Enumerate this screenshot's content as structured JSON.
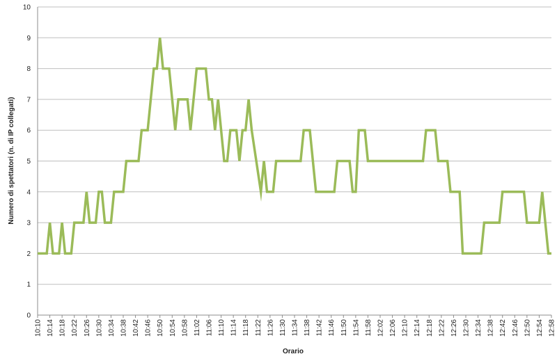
{
  "chart_data": {
    "type": "line",
    "title": "",
    "xlabel": "Orario",
    "ylabel": "Numero di spettatori (n. di IP collegati)",
    "ylim": [
      0,
      10
    ],
    "yticks": [
      0,
      1,
      2,
      3,
      4,
      5,
      6,
      7,
      8,
      9,
      10
    ],
    "grid": true,
    "legend": "none",
    "line_color": "#9BBB59",
    "grid_color": "#BFBFBF",
    "x_start": "10:10",
    "x_end": "12:58",
    "x_tick_labels": [
      "10:10",
      "10:14",
      "10:18",
      "10:22",
      "10:26",
      "10:30",
      "10:34",
      "10:38",
      "10:42",
      "10:46",
      "10:50",
      "10:54",
      "10:58",
      "11:02",
      "11:06",
      "11:10",
      "11:14",
      "11:18",
      "11:22",
      "11:26",
      "11:30",
      "11:34",
      "11:38",
      "11:42",
      "11:46",
      "11:50",
      "11:54",
      "11:58",
      "12:02",
      "12:06",
      "12:10",
      "12:14",
      "12:18",
      "12:22",
      "12:26",
      "12:30",
      "12:34",
      "12:38",
      "12:42",
      "12:46",
      "12:50",
      "12:54",
      "12:58"
    ],
    "series": [
      {
        "values": [
          [
            "10:10",
            2
          ],
          [
            "10:13",
            2
          ],
          [
            "10:14",
            3
          ],
          [
            "10:15",
            2
          ],
          [
            "10:17",
            2
          ],
          [
            "10:18",
            3
          ],
          [
            "10:19",
            2
          ],
          [
            "10:21",
            2
          ],
          [
            "10:22",
            3
          ],
          [
            "10:25",
            3
          ],
          [
            "10:26",
            4
          ],
          [
            "10:27",
            3
          ],
          [
            "10:29",
            3
          ],
          [
            "10:30",
            4
          ],
          [
            "10:31",
            4
          ],
          [
            "10:32",
            3
          ],
          [
            "10:34",
            3
          ],
          [
            "10:35",
            4
          ],
          [
            "10:38",
            4
          ],
          [
            "10:39",
            5
          ],
          [
            "10:43",
            5
          ],
          [
            "10:44",
            6
          ],
          [
            "10:46",
            6
          ],
          [
            "10:48",
            8
          ],
          [
            "10:49",
            8
          ],
          [
            "10:50",
            9
          ],
          [
            "10:51",
            8
          ],
          [
            "10:53",
            8
          ],
          [
            "10:55",
            6
          ],
          [
            "10:56",
            7
          ],
          [
            "10:59",
            7
          ],
          [
            "11:00",
            6
          ],
          [
            "11:02",
            8
          ],
          [
            "11:05",
            8
          ],
          [
            "11:06",
            7
          ],
          [
            "11:07",
            7
          ],
          [
            "11:08",
            6
          ],
          [
            "11:09",
            7
          ],
          [
            "11:11",
            5
          ],
          [
            "11:12",
            5
          ],
          [
            "11:13",
            6
          ],
          [
            "11:15",
            6
          ],
          [
            "11:16",
            5
          ],
          [
            "11:17",
            6
          ],
          [
            "11:18",
            6
          ],
          [
            "11:19",
            7
          ],
          [
            "11:20",
            6
          ],
          [
            "11:23",
            4
          ],
          [
            "11:24",
            5
          ],
          [
            "11:25",
            4
          ],
          [
            "11:27",
            4
          ],
          [
            "11:28",
            5
          ],
          [
            "11:36",
            5
          ],
          [
            "11:37",
            6
          ],
          [
            "11:39",
            6
          ],
          [
            "11:41",
            4
          ],
          [
            "11:47",
            4
          ],
          [
            "11:48",
            5
          ],
          [
            "11:52",
            5
          ],
          [
            "11:53",
            4
          ],
          [
            "11:54",
            4
          ],
          [
            "11:55",
            6
          ],
          [
            "11:57",
            6
          ],
          [
            "11:58",
            5
          ],
          [
            "12:16",
            5
          ],
          [
            "12:17",
            6
          ],
          [
            "12:20",
            6
          ],
          [
            "12:21",
            5
          ],
          [
            "12:24",
            5
          ],
          [
            "12:25",
            4
          ],
          [
            "12:28",
            4
          ],
          [
            "12:29",
            2
          ],
          [
            "12:35",
            2
          ],
          [
            "12:36",
            3
          ],
          [
            "12:41",
            3
          ],
          [
            "12:42",
            4
          ],
          [
            "12:49",
            4
          ],
          [
            "12:50",
            3
          ],
          [
            "12:54",
            3
          ],
          [
            "12:55",
            4
          ],
          [
            "12:57",
            2
          ],
          [
            "12:58",
            2
          ]
        ]
      }
    ]
  }
}
